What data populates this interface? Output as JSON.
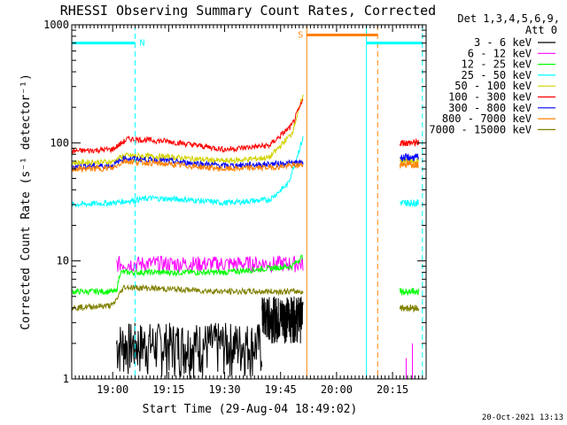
{
  "chart_data": {
    "type": "line",
    "title": "RHESSI Observing Summary Count Rates, Corrected",
    "ylabel": "Corrected Count Rate (s⁻¹ detector⁻¹)",
    "xlabel": "Start Time (29-Aug-04 18:49:02)",
    "y_scale": "log",
    "ylim": [
      1,
      1000
    ],
    "xlim": [
      "18:49:02",
      "20:24:00"
    ],
    "y_ticks": [
      {
        "value": 1,
        "label": "1"
      },
      {
        "value": 10,
        "label": "10"
      },
      {
        "value": 100,
        "label": "100"
      },
      {
        "value": 1000,
        "label": "1000"
      }
    ],
    "x_ticks": [
      {
        "value": "19:00",
        "label": "19:00"
      },
      {
        "value": "19:15",
        "label": "19:15"
      },
      {
        "value": "19:30",
        "label": "19:30"
      },
      {
        "value": "19:45",
        "label": "19:45"
      },
      {
        "value": "20:00",
        "label": "20:00"
      },
      {
        "value": "20:15",
        "label": "20:15"
      }
    ],
    "legend": {
      "placement": "outside-right",
      "header_line1": "Det 1,3,4,5,6,9,",
      "header_line2": "Att 0"
    },
    "series": [
      {
        "name": "3 - 6 keV",
        "color": "#000000",
        "segments": [
          {
            "start": "18:49",
            "end": "19:01",
            "value": 1
          },
          {
            "start": "19:01",
            "end": "19:40",
            "value": 1.6,
            "range": [
              1,
              3
            ]
          },
          {
            "start": "19:40",
            "end": "19:51",
            "value": 3,
            "range": [
              2,
              5
            ]
          }
        ]
      },
      {
        "name": "6 - 12 keV",
        "color": "#ff00ff",
        "segments": [
          {
            "start": "18:49",
            "end": "19:01",
            "value": 1
          },
          {
            "start": "19:01",
            "end": "19:51",
            "value": 9.5,
            "range": [
              8,
              11
            ]
          },
          {
            "start": "20:17",
            "end": "20:22",
            "value": 1,
            "spikes": [
              1.5,
              2
            ]
          }
        ]
      },
      {
        "name": "12 - 25 keV",
        "color": "#00ff00",
        "points": [
          {
            "t": "18:49",
            "v": 5.5
          },
          {
            "t": "19:01",
            "v": 5.5
          },
          {
            "t": "19:02",
            "v": 8
          },
          {
            "t": "19:30",
            "v": 8
          },
          {
            "t": "19:48",
            "v": 9
          },
          {
            "t": "19:51",
            "v": 11
          }
        ],
        "segments_after": [
          {
            "start": "20:17",
            "end": "20:22",
            "v": 5.5
          }
        ]
      },
      {
        "name": "25 - 50 keV",
        "color": "#00ffff",
        "points": [
          {
            "t": "18:49",
            "v": 30
          },
          {
            "t": "19:00",
            "v": 31
          },
          {
            "t": "19:10",
            "v": 34
          },
          {
            "t": "19:20",
            "v": 33
          },
          {
            "t": "19:30",
            "v": 31
          },
          {
            "t": "19:42",
            "v": 33
          },
          {
            "t": "19:47",
            "v": 45
          },
          {
            "t": "19:51",
            "v": 110
          }
        ],
        "segments_after": [
          {
            "start": "20:17",
            "end": "20:22",
            "v": 31
          }
        ]
      },
      {
        "name": "50 - 100 keV",
        "color": "#d2d200",
        "points": [
          {
            "t": "18:49",
            "v": 68
          },
          {
            "t": "19:00",
            "v": 69
          },
          {
            "t": "19:03",
            "v": 78
          },
          {
            "t": "19:15",
            "v": 76
          },
          {
            "t": "19:30",
            "v": 70
          },
          {
            "t": "19:42",
            "v": 75
          },
          {
            "t": "19:48",
            "v": 120
          },
          {
            "t": "19:51",
            "v": 250
          }
        ],
        "segments_after": [
          {
            "start": "20:17",
            "end": "20:22",
            "v": 70
          }
        ]
      },
      {
        "name": "100 - 300 keV",
        "color": "#ff0000",
        "points": [
          {
            "t": "18:49",
            "v": 85
          },
          {
            "t": "19:00",
            "v": 88
          },
          {
            "t": "19:04",
            "v": 108
          },
          {
            "t": "19:15",
            "v": 103
          },
          {
            "t": "19:30",
            "v": 88
          },
          {
            "t": "19:42",
            "v": 95
          },
          {
            "t": "19:48",
            "v": 140
          },
          {
            "t": "19:51",
            "v": 230
          }
        ],
        "segments_after": [
          {
            "start": "20:17",
            "end": "20:22",
            "v": 100
          }
        ]
      },
      {
        "name": "300 - 800 keV",
        "color": "#0000ff",
        "points": [
          {
            "t": "18:49",
            "v": 63
          },
          {
            "t": "19:00",
            "v": 64
          },
          {
            "t": "19:03",
            "v": 74
          },
          {
            "t": "19:15",
            "v": 70
          },
          {
            "t": "19:30",
            "v": 64
          },
          {
            "t": "19:42",
            "v": 66
          },
          {
            "t": "19:51",
            "v": 68
          }
        ],
        "segments_after": [
          {
            "start": "20:17",
            "end": "20:22",
            "v": 75
          }
        ]
      },
      {
        "name": "800 - 7000 keV",
        "color": "#ff8000",
        "points": [
          {
            "t": "18:49",
            "v": 60
          },
          {
            "t": "19:00",
            "v": 61
          },
          {
            "t": "19:03",
            "v": 70
          },
          {
            "t": "19:15",
            "v": 66
          },
          {
            "t": "19:30",
            "v": 60
          },
          {
            "t": "19:42",
            "v": 62
          },
          {
            "t": "19:51",
            "v": 65
          }
        ],
        "segments_after": [
          {
            "start": "20:17",
            "end": "20:22",
            "v": 66
          }
        ]
      },
      {
        "name": "7000 - 15000 keV",
        "color": "#808000",
        "points": [
          {
            "t": "18:49",
            "v": 4
          },
          {
            "t": "19:00",
            "v": 4.2
          },
          {
            "t": "19:03",
            "v": 6
          },
          {
            "t": "19:30",
            "v": 5.5
          },
          {
            "t": "19:51",
            "v": 5.5
          }
        ],
        "segments_after": [
          {
            "start": "20:17",
            "end": "20:22",
            "v": 4
          }
        ]
      }
    ],
    "annotations": {
      "vlines": [
        {
          "t": "18:49:02",
          "color": "#00ffff",
          "style": "solid"
        },
        {
          "t": "19:06",
          "color": "#00ffff",
          "style": "dashed"
        },
        {
          "t": "19:52",
          "color": "#ff8000",
          "style": "solid"
        },
        {
          "t": "20:08",
          "color": "#00ffff",
          "style": "solid"
        },
        {
          "t": "20:11",
          "color": "#ff8000",
          "style": "dashed"
        },
        {
          "t": "20:23",
          "color": "#00ffff",
          "style": "dashed"
        }
      ],
      "hbars": [
        {
          "start": "18:49",
          "end": "19:06",
          "color": "#00ffff",
          "label": "N",
          "value": 700
        },
        {
          "start": "19:52",
          "end": "20:11",
          "color": "#ff8000",
          "label": "S",
          "value": 820
        },
        {
          "start": "20:08",
          "end": "20:23",
          "color": "#00ffff",
          "label": "",
          "value": 700
        }
      ]
    },
    "gap": {
      "start": "19:52",
      "end": "20:16"
    },
    "timestamp": "20-Oct-2021 13:13"
  }
}
